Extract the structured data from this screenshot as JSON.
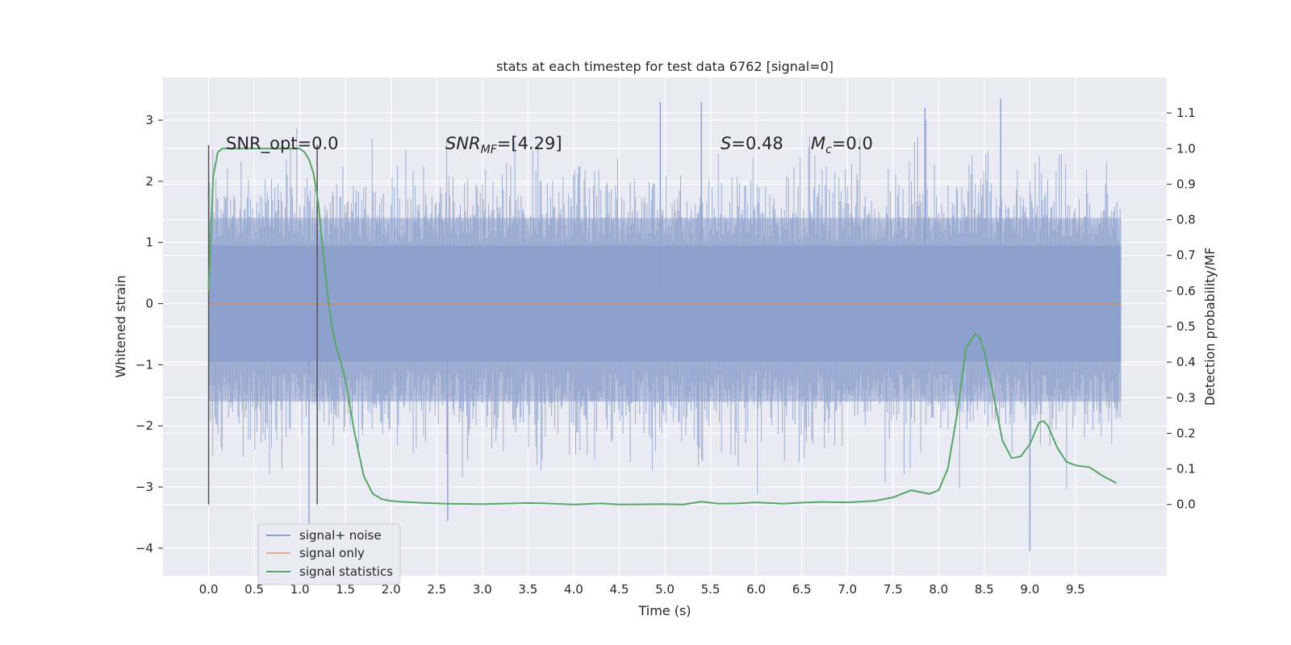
{
  "chart_data": {
    "type": "line",
    "title": "stats at each timestep for test data 6762 [signal=0]",
    "xlabel": "Time (s)",
    "ylabel": "Whitened strain",
    "y2label": "Detection probability/MF",
    "xlim": [
      -0.5,
      10.5
    ],
    "ylim": [
      -4.45,
      3.7
    ],
    "y2lim": [
      -0.2,
      1.2
    ],
    "x_ticks": [
      "0.0",
      "0.5",
      "1.0",
      "1.5",
      "2.0",
      "2.5",
      "3.0",
      "3.5",
      "4.0",
      "4.5",
      "5.0",
      "5.5",
      "6.0",
      "6.5",
      "7.0",
      "7.5",
      "8.0",
      "8.5",
      "9.0",
      "9.5"
    ],
    "y_ticks": [
      "−4",
      "−3",
      "−2",
      "−1",
      "0",
      "1",
      "2",
      "3"
    ],
    "y2_ticks": [
      "0.0",
      "0.1",
      "0.2",
      "0.3",
      "0.4",
      "0.5",
      "0.6",
      "0.7",
      "0.8",
      "0.9",
      "1.0",
      "1.1"
    ],
    "grid": true,
    "legend": {
      "placement": "lower-left",
      "entries": [
        "signal+ noise",
        "signal only",
        "signal statistics"
      ]
    },
    "annotations": {
      "snr_opt": "SNR_opt=0.0",
      "snr_mf_main": "SNR",
      "snr_mf_sub": "MF",
      "snr_mf_value": "=[4.29]",
      "s_main": "S",
      "s_value": "=0.48",
      "mc_main": "M",
      "mc_sub": "c",
      "mc_value": "=0.0"
    },
    "vertical_lines_x": [
      0.0,
      1.19
    ],
    "noise_band": {
      "x_range": [
        0.0,
        10.0
      ],
      "inner_band": [
        -0.95,
        0.95
      ],
      "middle_band": [
        -1.6,
        1.4
      ],
      "max_peak": 3.35,
      "min_peak": -4.05
    },
    "signal_only": {
      "x": [
        0.0,
        10.0
      ],
      "y": [
        0.0,
        0.0
      ]
    },
    "series": [
      {
        "name": "signal statistics",
        "axis": "right",
        "x": [
          0.0,
          0.05,
          0.1,
          0.15,
          0.2,
          0.3,
          0.5,
          0.8,
          1.0,
          1.05,
          1.1,
          1.15,
          1.2,
          1.25,
          1.3,
          1.35,
          1.4,
          1.45,
          1.5,
          1.6,
          1.7,
          1.8,
          1.9,
          2.0,
          2.1,
          2.3,
          2.6,
          3.0,
          3.5,
          3.7,
          4.0,
          4.3,
          4.5,
          5.0,
          5.2,
          5.4,
          5.6,
          5.8,
          6.0,
          6.3,
          6.5,
          6.7,
          7.0,
          7.3,
          7.5,
          7.7,
          7.9,
          8.0,
          8.1,
          8.2,
          8.3,
          8.4,
          8.45,
          8.5,
          8.6,
          8.7,
          8.8,
          8.9,
          9.0,
          9.1,
          9.15,
          9.2,
          9.3,
          9.4,
          9.5,
          9.65,
          9.8,
          9.95
        ],
        "y": [
          0.6,
          0.92,
          0.99,
          1.0,
          1.0,
          1.0,
          1.0,
          1.0,
          1.0,
          0.99,
          0.97,
          0.93,
          0.85,
          0.72,
          0.6,
          0.5,
          0.44,
          0.4,
          0.35,
          0.2,
          0.08,
          0.03,
          0.015,
          0.01,
          0.008,
          0.005,
          0.002,
          0.001,
          0.004,
          0.003,
          0.0,
          0.003,
          0.0,
          0.001,
          0.0,
          0.008,
          0.002,
          0.003,
          0.006,
          0.002,
          0.005,
          0.007,
          0.006,
          0.01,
          0.02,
          0.04,
          0.03,
          0.04,
          0.1,
          0.25,
          0.44,
          0.48,
          0.47,
          0.43,
          0.31,
          0.18,
          0.13,
          0.135,
          0.17,
          0.23,
          0.235,
          0.22,
          0.16,
          0.12,
          0.11,
          0.105,
          0.08,
          0.06
        ]
      }
    ]
  }
}
